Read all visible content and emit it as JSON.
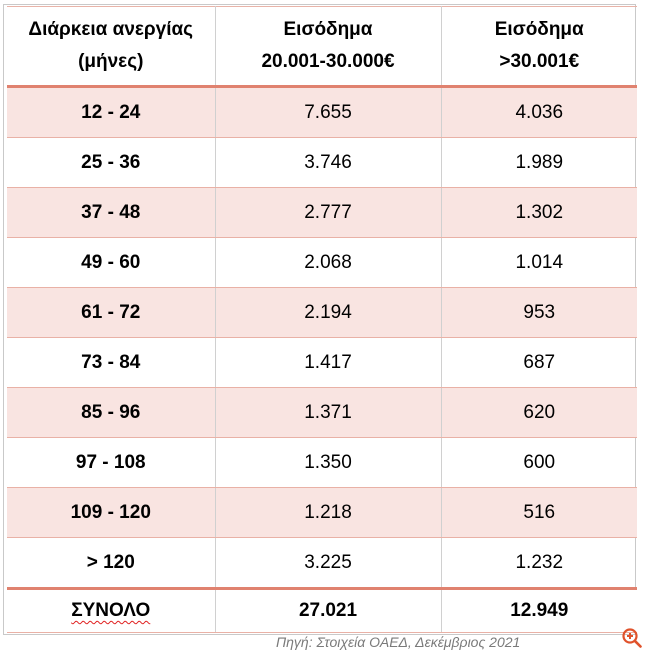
{
  "table": {
    "headers": [
      {
        "line1": "Διάρκεια ανεργίας",
        "line2": "(μήνες)"
      },
      {
        "line1": "Εισόδημα",
        "line2": "20.001-30.000€"
      },
      {
        "line1": "Εισόδημα",
        "line2": ">30.001€"
      }
    ],
    "rows": [
      {
        "range": "12 - 24",
        "income_20_30k": "7.655",
        "income_over_30k": "4.036"
      },
      {
        "range": "25 - 36",
        "income_20_30k": "3.746",
        "income_over_30k": "1.989"
      },
      {
        "range": "37 - 48",
        "income_20_30k": "2.777",
        "income_over_30k": "1.302"
      },
      {
        "range": "49 - 60",
        "income_20_30k": "2.068",
        "income_over_30k": "1.014"
      },
      {
        "range": "61 - 72",
        "income_20_30k": "2.194",
        "income_over_30k": "953"
      },
      {
        "range": "73 - 84",
        "income_20_30k": "1.417",
        "income_over_30k": "687"
      },
      {
        "range": "85 - 96",
        "income_20_30k": "1.371",
        "income_over_30k": "620"
      },
      {
        "range": "97 - 108",
        "income_20_30k": "1.350",
        "income_over_30k": "600"
      },
      {
        "range": "109 - 120",
        "income_20_30k": "1.218",
        "income_over_30k": "516"
      },
      {
        "range": "> 120",
        "income_20_30k": "3.225",
        "income_over_30k": "1.232"
      }
    ],
    "total": {
      "label": "ΣΥΝΟΛΟ",
      "income_20_30k": "27.021",
      "income_over_30k": "12.949"
    }
  },
  "source_note": "Πηγή: Στοιχεία ΟΑΕΔ, Δεκέμβριος 2021",
  "zoom_icon": "zoom-in-icon",
  "colors": {
    "accent_line": "#e0826f",
    "shaded_row": "#f9e4e1",
    "grid_line": "#d0d0d0",
    "source_text": "#7a7a7a",
    "zoom_icon": "#e0522b"
  }
}
